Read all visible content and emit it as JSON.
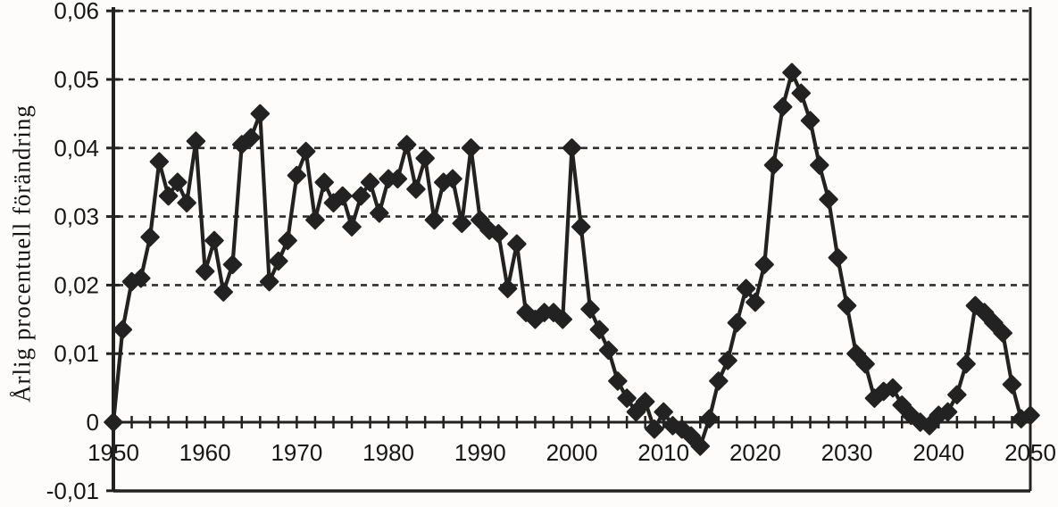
{
  "figure": {
    "background": "#fdfcfa",
    "ink": "#222222",
    "grid_color": "#2e2e2e"
  },
  "chart_data": {
    "type": "line",
    "title": "",
    "xlabel": "",
    "ylabel": "Årlig procentuell förändring",
    "marker": "diamond",
    "grid": "dashed horizontal lines every 0.01",
    "legend": "none",
    "xlim": [
      1950,
      2050
    ],
    "ylim": [
      -0.01,
      0.06
    ],
    "x_ticks_labeled": [
      1950,
      1960,
      1970,
      1980,
      1990,
      2000,
      2010,
      2020,
      2030,
      2040,
      2050
    ],
    "x_tick_labels": [
      "1950",
      "1960",
      "1970",
      "1980",
      "1990",
      "2000",
      "2010",
      "2020",
      "2030",
      "2040",
      "2050"
    ],
    "x_minor_tick_step_years": 2,
    "y_tick_values": [
      0.06,
      0.05,
      0.04,
      0.03,
      0.02,
      0.01,
      0,
      -0.01
    ],
    "y_tick_labels": [
      "0,06",
      "0,05",
      "0,04",
      "0,03",
      "0,02",
      "0,01",
      "0",
      "-0,01"
    ],
    "series": [
      {
        "name": "Årlig procentuell förändring",
        "x_start": 1950,
        "x_step": 1,
        "years": [
          1950,
          1951,
          1952,
          1953,
          1954,
          1955,
          1956,
          1957,
          1958,
          1959,
          1960,
          1961,
          1962,
          1963,
          1964,
          1965,
          1966,
          1967,
          1968,
          1969,
          1970,
          1971,
          1972,
          1973,
          1974,
          1975,
          1976,
          1977,
          1978,
          1979,
          1980,
          1981,
          1982,
          1983,
          1984,
          1985,
          1986,
          1987,
          1988,
          1989,
          1990,
          1991,
          1992,
          1993,
          1994,
          1995,
          1996,
          1997,
          1998,
          1999,
          2000,
          2001,
          2002,
          2003,
          2004,
          2005,
          2006,
          2007,
          2008,
          2009,
          2010,
          2011,
          2012,
          2013,
          2014,
          2015,
          2016,
          2017,
          2018,
          2019,
          2020,
          2021,
          2022,
          2023,
          2024,
          2025,
          2026,
          2027,
          2028,
          2029,
          2030,
          2031,
          2032,
          2033,
          2034,
          2035,
          2036,
          2037,
          2038,
          2039,
          2040,
          2041,
          2042,
          2043,
          2044,
          2045,
          2046,
          2047,
          2048,
          2049,
          2050
        ],
        "values": [
          0.0,
          0.0135,
          0.0205,
          0.021,
          0.027,
          0.038,
          0.033,
          0.035,
          0.032,
          0.041,
          0.022,
          0.0265,
          0.019,
          0.023,
          0.0405,
          0.0415,
          0.045,
          0.0205,
          0.0235,
          0.0265,
          0.036,
          0.0395,
          0.0295,
          0.035,
          0.032,
          0.033,
          0.0285,
          0.033,
          0.035,
          0.0305,
          0.0355,
          0.0355,
          0.0405,
          0.034,
          0.0385,
          0.0295,
          0.035,
          0.0355,
          0.029,
          0.04,
          0.0295,
          0.028,
          0.0275,
          0.0195,
          0.026,
          0.016,
          0.015,
          0.016,
          0.016,
          0.015,
          0.04,
          0.0285,
          0.0165,
          0.0135,
          0.0105,
          0.006,
          0.0035,
          0.0015,
          0.003,
          -0.001,
          0.0015,
          -0.0005,
          -0.001,
          -0.002,
          -0.0035,
          0.0005,
          0.006,
          0.009,
          0.0145,
          0.0195,
          0.0175,
          0.023,
          0.0375,
          0.046,
          0.051,
          0.048,
          0.044,
          0.0375,
          0.0325,
          0.024,
          0.017,
          0.01,
          0.0085,
          0.0035,
          0.0045,
          0.005,
          0.0025,
          0.001,
          0.0,
          -0.0005,
          0.001,
          0.0015,
          0.004,
          0.0085,
          0.017,
          0.016,
          0.0145,
          0.013,
          0.0055,
          0.0005,
          0.001
        ]
      }
    ]
  }
}
